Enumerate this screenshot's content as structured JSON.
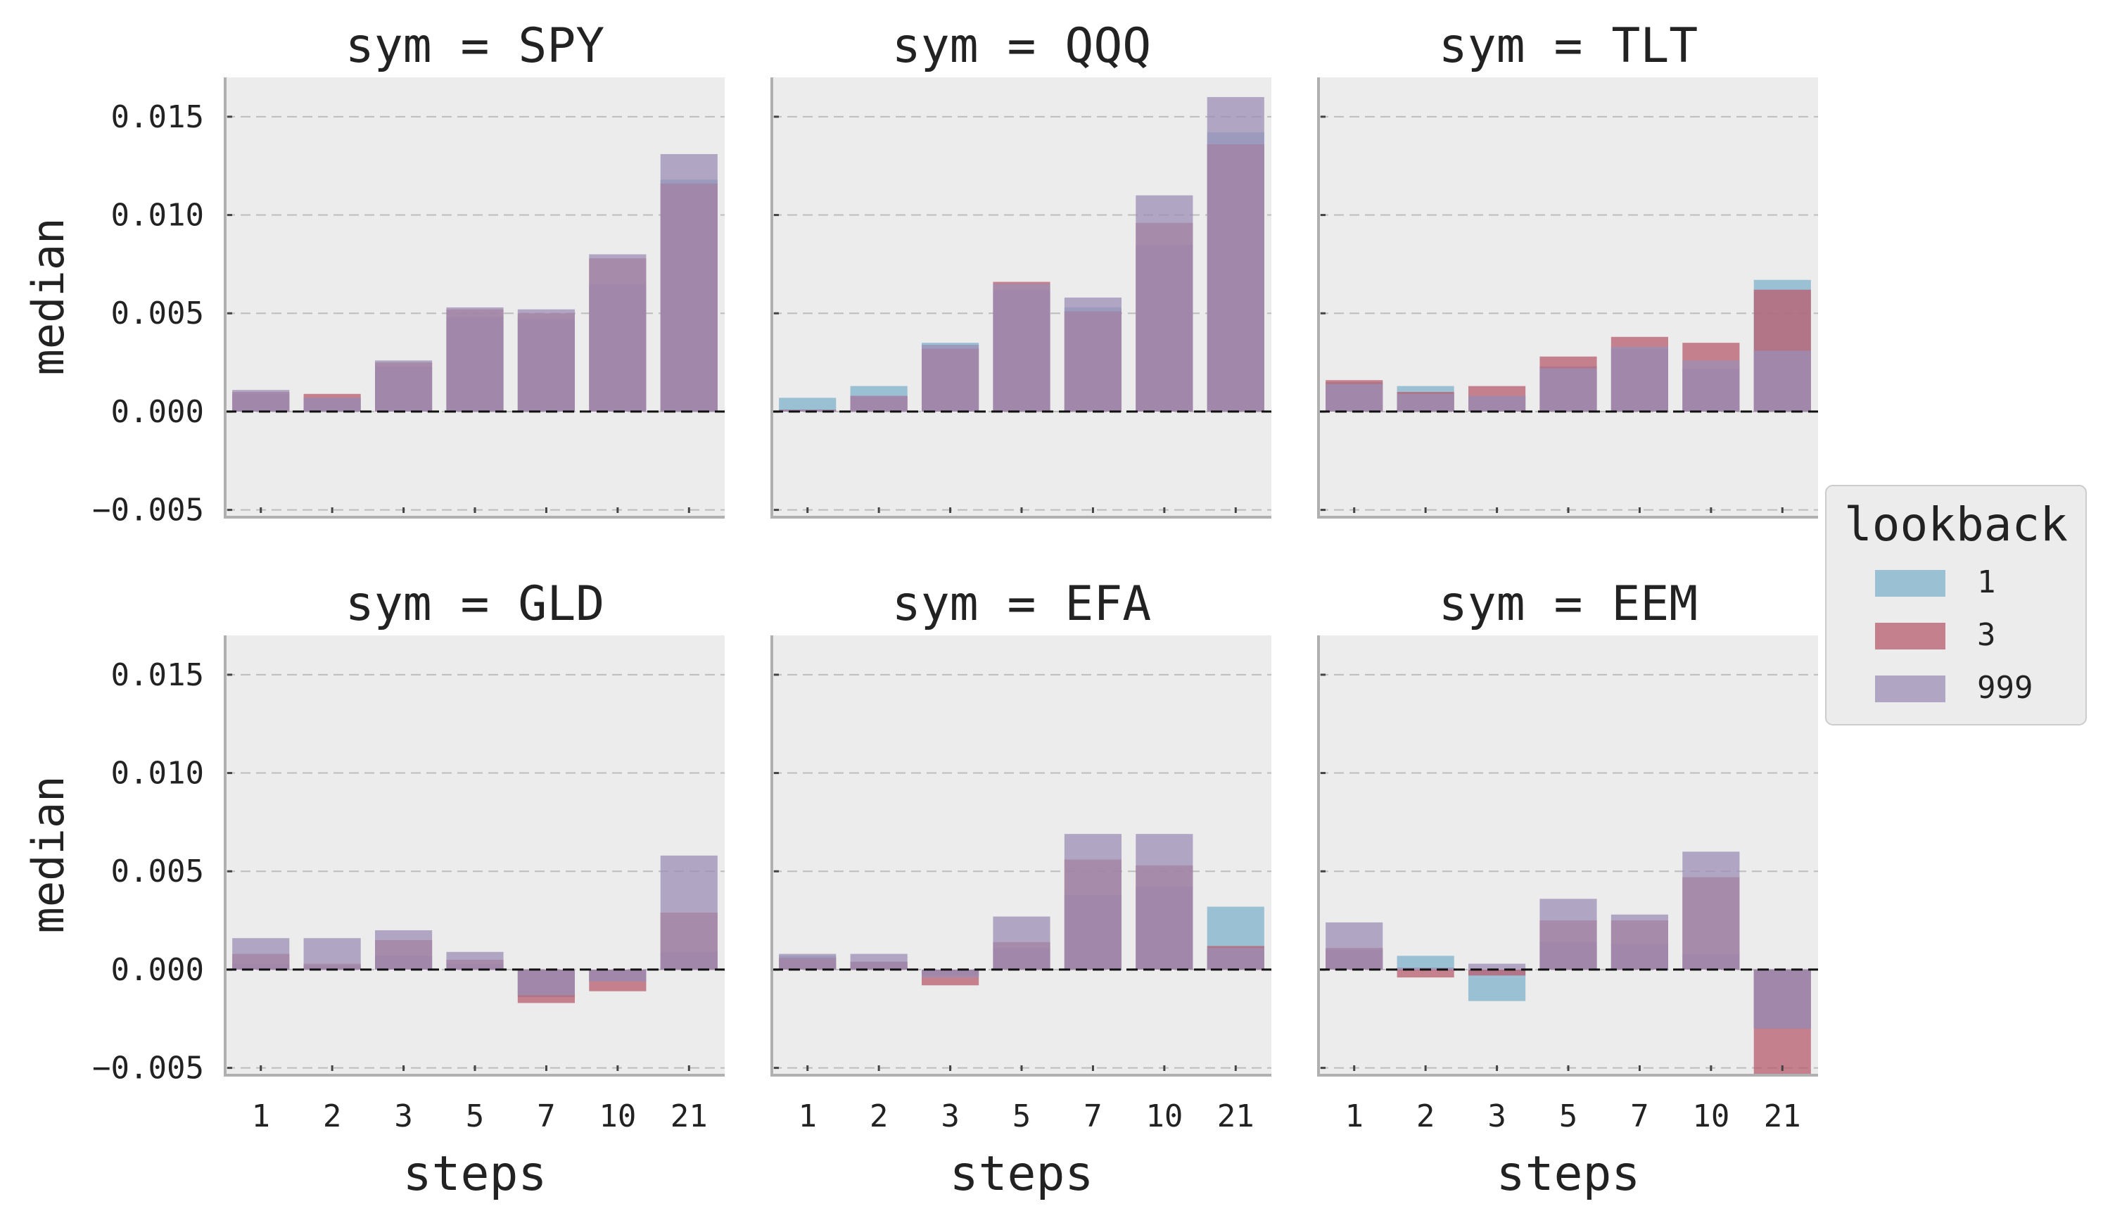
{
  "chart_data": {
    "type": "bar",
    "layout": "facet-grid",
    "facet_rows": 2,
    "facet_cols": 3,
    "overlay": true,
    "ylabel": "median",
    "xlabel": "steps",
    "categories": [
      "1",
      "2",
      "3",
      "5",
      "7",
      "10",
      "21"
    ],
    "ylim": [
      -0.0053,
      0.017
    ],
    "yticks": [
      -0.005,
      0.0,
      0.005,
      0.01,
      0.015
    ],
    "ytick_labels": [
      "−0.005",
      "0.000",
      "0.005",
      "0.010",
      "0.015"
    ],
    "grid": "horizontal dashed",
    "zero_line": "dashed black",
    "legend": {
      "title": "lookback",
      "placement": "right",
      "entries": [
        {
          "label": "1",
          "color": "#7fb2cc"
        },
        {
          "label": "3",
          "color": "#b85c6e"
        },
        {
          "label": "999",
          "color": "#9c8fb6"
        }
      ]
    },
    "bar_opacity": 0.75,
    "colors": {
      "panel_bg": "#ececec",
      "grid": "#bdbdbd",
      "axis": "#b0b0b0",
      "text": "#222222"
    },
    "panels": [
      {
        "title": "sym = SPY",
        "series": [
          {
            "name": "1",
            "values": [
              0.0009,
              0.0007,
              0.0023,
              0.0048,
              0.0047,
              0.0065,
              0.0118
            ]
          },
          {
            "name": "3",
            "values": [
              0.001,
              0.0009,
              0.0025,
              0.0052,
              0.005,
              0.0078,
              0.0116
            ]
          },
          {
            "name": "999",
            "values": [
              0.0011,
              0.0007,
              0.0026,
              0.0053,
              0.0052,
              0.008,
              0.0131
            ]
          }
        ]
      },
      {
        "title": "sym = QQQ",
        "series": [
          {
            "name": "1",
            "values": [
              0.0007,
              0.0013,
              0.0035,
              0.0062,
              0.0053,
              0.0085,
              0.0142
            ]
          },
          {
            "name": "3",
            "values": [
              0.0001,
              0.0008,
              0.0032,
              0.0066,
              0.0051,
              0.0096,
              0.0136
            ]
          },
          {
            "name": "999",
            "values": [
              0.0001,
              0.0008,
              0.0034,
              0.0065,
              0.0058,
              0.011,
              0.016
            ]
          }
        ]
      },
      {
        "title": "sym = TLT",
        "series": [
          {
            "name": "1",
            "values": [
              0.0015,
              0.0013,
              0.0008,
              0.0023,
              0.0032,
              0.0022,
              0.0067
            ]
          },
          {
            "name": "3",
            "values": [
              0.0016,
              0.001,
              0.0013,
              0.0028,
              0.0038,
              0.0035,
              0.0062
            ]
          },
          {
            "name": "999",
            "values": [
              0.0014,
              0.0009,
              0.0008,
              0.0022,
              0.0033,
              0.0026,
              0.0031
            ]
          }
        ]
      },
      {
        "title": "sym = GLD",
        "series": [
          {
            "name": "1",
            "values": [
              0.0003,
              0.0002,
              0.0007,
              0.0003,
              -0.0014,
              -0.0006,
              0.0009
            ]
          },
          {
            "name": "3",
            "values": [
              0.0008,
              0.0003,
              0.0015,
              0.0005,
              -0.0017,
              -0.0011,
              0.0029
            ]
          },
          {
            "name": "999",
            "values": [
              0.0016,
              0.0016,
              0.002,
              0.0009,
              -0.0013,
              -0.0006,
              0.0058
            ]
          }
        ]
      },
      {
        "title": "sym = EFA",
        "series": [
          {
            "name": "1",
            "values": [
              0.0007,
              0.0004,
              -0.0003,
              0.0011,
              0.0038,
              0.0042,
              0.0032
            ]
          },
          {
            "name": "3",
            "values": [
              0.0006,
              0.0004,
              -0.0008,
              0.0014,
              0.0056,
              0.0053,
              0.0012
            ]
          },
          {
            "name": "999",
            "values": [
              0.0008,
              0.0008,
              -0.0004,
              0.0027,
              0.0069,
              0.0069,
              0.0011
            ]
          }
        ]
      },
      {
        "title": "sym = EEM",
        "series": [
          {
            "name": "1",
            "values": [
              0.001,
              0.0007,
              -0.0016,
              0.0014,
              0.0013,
              0.0008,
              -0.003
            ]
          },
          {
            "name": "3",
            "values": [
              0.0011,
              -0.0004,
              -0.0003,
              0.0025,
              0.0025,
              0.0047,
              -0.0053
            ]
          },
          {
            "name": "999",
            "values": [
              0.0024,
              0.0001,
              0.0003,
              0.0036,
              0.0028,
              0.006,
              -0.003
            ]
          }
        ]
      }
    ]
  }
}
